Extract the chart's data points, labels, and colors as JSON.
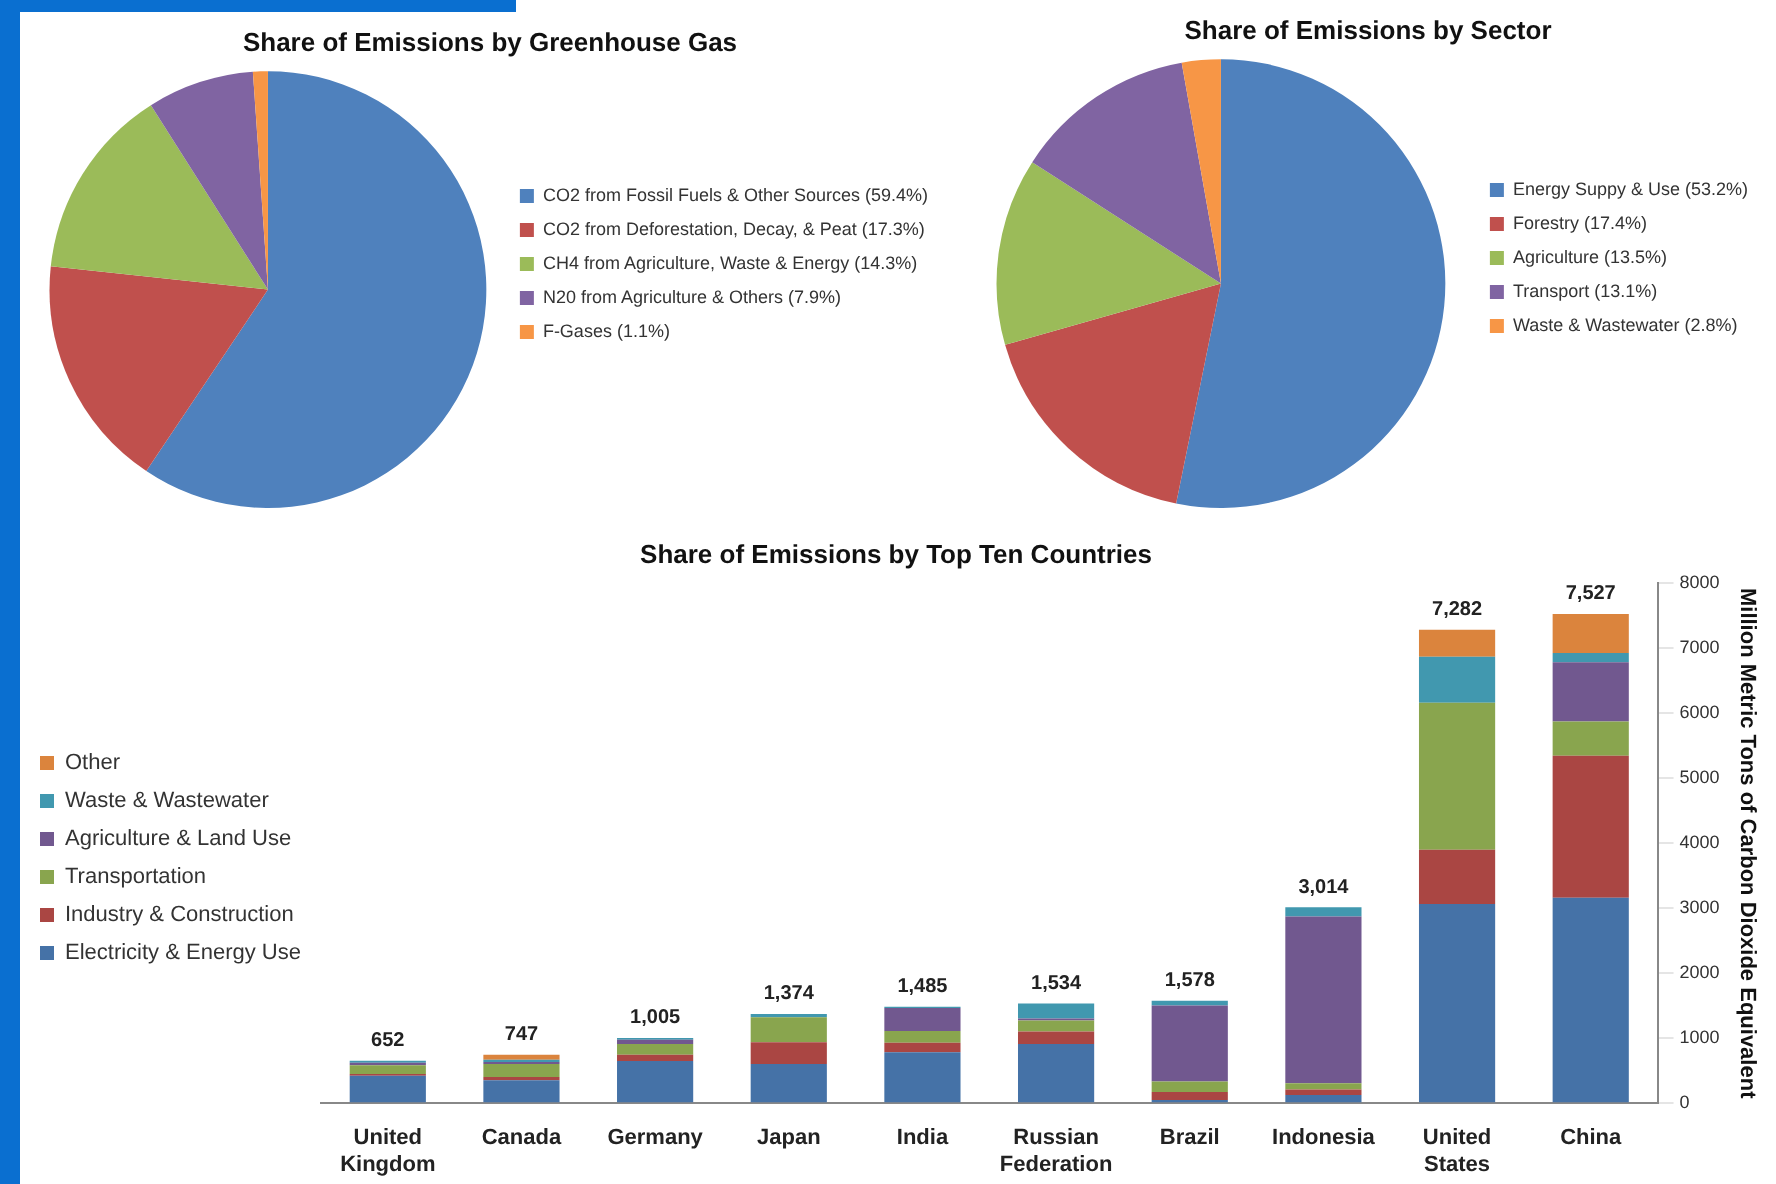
{
  "chart_data": [
    {
      "type": "pie",
      "title": "Share of Emissions by Greenhouse Gas",
      "categories": [
        "CO2 from Fossil Fuels & Other Sources (59.4%)",
        "CO2 from Deforestation, Decay, & Peat (17.3%)",
        "CH4 from Agriculture, Waste & Energy (14.3%)",
        "N20 from Agriculture & Others (7.9%)",
        "F-Gases (1.1%)"
      ],
      "values": [
        59.4,
        17.3,
        14.3,
        7.9,
        1.1
      ],
      "colors": [
        "#4f81bd",
        "#c0504d",
        "#9bbb59",
        "#8064a2",
        "#f79646"
      ],
      "legend": "right"
    },
    {
      "type": "pie",
      "title": "Share of Emissions by Sector",
      "categories": [
        "Energy Suppy & Use (53.2%)",
        "Forestry (17.4%)",
        "Agriculture (13.5%)",
        "Transport (13.1%)",
        "Waste & Wastewater (2.8%)"
      ],
      "values": [
        53.2,
        17.4,
        13.5,
        13.1,
        2.8
      ],
      "colors": [
        "#4f81bd",
        "#c0504d",
        "#9bbb59",
        "#8064a2",
        "#f79646"
      ],
      "legend": "right"
    },
    {
      "type": "bar",
      "title": "Share of Emissions by Top Ten Countries",
      "ylabel": "Million Metric Tons of Carbon Dioxide Equivalent",
      "categories": [
        "United Kingdom",
        "Canada",
        "Germany",
        "Japan",
        "India",
        "Russian Federation",
        "Brazil",
        "Indonesia",
        "United States",
        "China"
      ],
      "stacked": true,
      "series": [
        {
          "name": "Electricity & Energy Use",
          "color": "#4572a7",
          "values": [
            421,
            354,
            651,
            603,
            785,
            910,
            50,
            125,
            3065,
            3161
          ]
        },
        {
          "name": "Industry & Construction",
          "color": "#aa4643",
          "values": [
            29,
            48,
            96,
            336,
            144,
            192,
            122,
            86,
            833,
            2184
          ]
        },
        {
          "name": "Transportation",
          "color": "#89a54e",
          "values": [
            134,
            201,
            163,
            383,
            182,
            172,
            163,
            96,
            2261,
            527
          ]
        },
        {
          "name": "Agriculture & Land Use",
          "color": "#71588f",
          "values": [
            38,
            29,
            67,
            0,
            355,
            29,
            1169,
            2567,
            0,
            910
          ]
        },
        {
          "name": "Waste & Wastewater",
          "color": "#4198af",
          "values": [
            30,
            38,
            28,
            52,
            19,
            231,
            74,
            140,
            709,
            143
          ]
        },
        {
          "name": "Other",
          "color": "#db843d",
          "values": [
            0,
            77,
            0,
            0,
            0,
            0,
            0,
            0,
            414,
            602
          ]
        }
      ],
      "totals": [
        "652",
        "747",
        "1,005",
        "1,374",
        "1,485",
        "1,534",
        "1,578",
        "3,014",
        "7,282",
        "7,527"
      ],
      "ylim": [
        0,
        8000
      ],
      "yticks": [
        0,
        1000,
        2000,
        3000,
        4000,
        5000,
        6000,
        7000,
        8000
      ],
      "grid": false,
      "legend": "left"
    }
  ]
}
